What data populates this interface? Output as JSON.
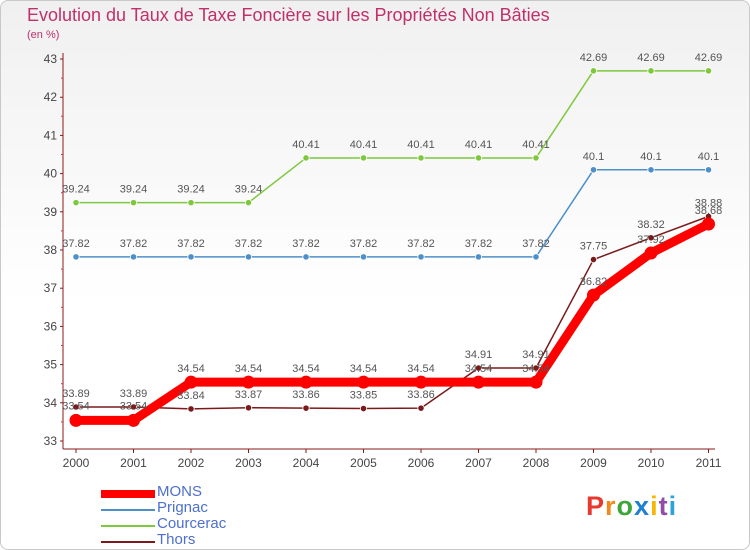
{
  "chart_data": {
    "type": "line",
    "title": "Evolution du Taux de Taxe Foncière sur les Propriétés Non Bâties",
    "subtitle": "(en %)",
    "xlabel": "",
    "ylabel": "(en %)",
    "ylim": [
      33,
      43
    ],
    "yticks": [
      "33",
      "34",
      "35",
      "36",
      "37",
      "38",
      "39",
      "40",
      "41",
      "42",
      "43"
    ],
    "categories": [
      "2000",
      "2001",
      "2002",
      "2003",
      "2004",
      "2005",
      "2006",
      "2007",
      "2008",
      "2009",
      "2010",
      "2011"
    ],
    "grid": false,
    "legend_position": "bottom-left",
    "series": [
      {
        "name": "MONS",
        "color": "#ff0000",
        "values": [
          33.54,
          33.54,
          34.54,
          34.54,
          34.54,
          34.54,
          34.54,
          34.54,
          34.54,
          36.82,
          37.92,
          38.68
        ],
        "labels": [
          "33.54",
          "33.54",
          "34.54",
          "34.54",
          "34.54",
          "34.54",
          "34.54",
          "34.54",
          "34.54",
          "36.82",
          "37.92",
          "38.68"
        ]
      },
      {
        "name": "Prignac",
        "color": "#4d8fc9",
        "values": [
          37.82,
          37.82,
          37.82,
          37.82,
          37.82,
          37.82,
          37.82,
          37.82,
          37.82,
          40.1,
          40.1,
          40.1
        ],
        "labels": [
          "37.82",
          "37.82",
          "37.82",
          "37.82",
          "37.82",
          "37.82",
          "37.82",
          "37.82",
          "37.82",
          "40.1",
          "40.1",
          "40.1"
        ]
      },
      {
        "name": "Courcerac",
        "color": "#7ec83e",
        "values": [
          39.24,
          39.24,
          39.24,
          39.24,
          40.41,
          40.41,
          40.41,
          40.41,
          40.41,
          42.69,
          42.69,
          42.69
        ],
        "labels": [
          "39.24",
          "39.24",
          "39.24",
          "39.24",
          "40.41",
          "40.41",
          "40.41",
          "40.41",
          "40.41",
          "42.69",
          "42.69",
          "42.69"
        ]
      },
      {
        "name": "Thors",
        "color": "#7a1a1a",
        "values": [
          33.89,
          33.89,
          33.84,
          33.87,
          33.86,
          33.85,
          33.86,
          34.91,
          34.91,
          37.75,
          38.32,
          38.88
        ],
        "labels": [
          "33.89",
          "33.89",
          "33.84",
          "33.87",
          "33.86",
          "33.85",
          "33.86",
          "34.91",
          "34.91",
          "37.75",
          "38.32",
          "38.88"
        ]
      }
    ]
  },
  "logo": {
    "letters": [
      "P",
      "r",
      "o",
      "x",
      "i",
      "t",
      "i"
    ],
    "colors": [
      "#e8392f",
      "#f08a1c",
      "#3ea639",
      "#1f7fd1",
      "#f5b800",
      "#8f4ea8",
      "#2aa5d6"
    ]
  }
}
